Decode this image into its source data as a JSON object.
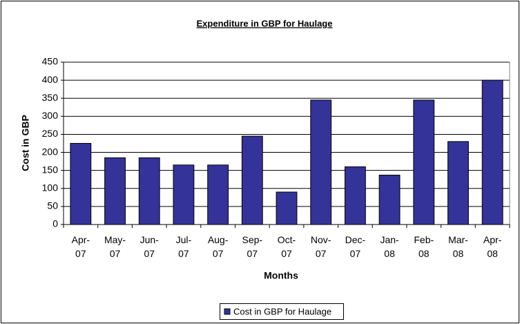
{
  "chart_data": {
    "type": "bar",
    "title": "Expenditure in GBP for Haulage",
    "x_label": "Months",
    "y_label": "Cost in GBP",
    "categories": [
      "Apr-07",
      "May-07",
      "Jun-07",
      "Jul-07",
      "Aug-07",
      "Sep-07",
      "Oct-07",
      "Nov-07",
      "Dec-07",
      "Jan-08",
      "Feb-08",
      "Mar-08",
      "Apr-08"
    ],
    "series": [
      {
        "name": "Cost in GBP for Haulage",
        "color": "#333399",
        "values": [
          225,
          185,
          185,
          165,
          165,
          245,
          90,
          345,
          160,
          137,
          345,
          230,
          400
        ]
      }
    ],
    "ylim": [
      0,
      450
    ],
    "yticks": [
      0,
      50,
      100,
      150,
      200,
      250,
      300,
      350,
      400,
      450
    ],
    "grid": true,
    "legend": "bottom"
  }
}
